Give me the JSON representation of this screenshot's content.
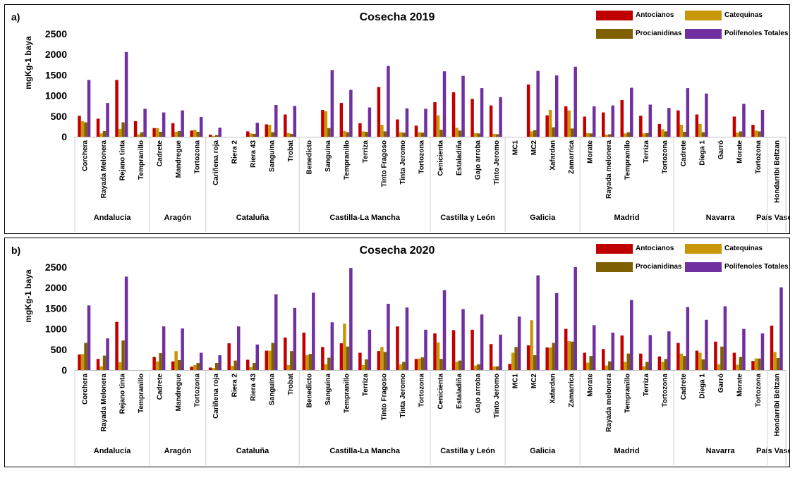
{
  "series_colors": [
    "#C00000",
    "#C9960A",
    "#7F6000",
    "#7030A0"
  ],
  "legend": [
    "Antocianos",
    "Catequinas",
    "Procianidinas",
    "Polifenoles Totales"
  ],
  "chart_data": [
    {
      "type": "bar",
      "panel": "a)",
      "title": "Cosecha 2019",
      "ylabel": "mgKg-1 baya",
      "ylim": [
        0,
        2500
      ],
      "yticks": [
        0,
        500,
        1000,
        1500,
        2000,
        2500
      ],
      "grid": false,
      "legend_position": "top-right",
      "categories": [
        "Corchera",
        "Rayada Melonera",
        "Rejano tinta",
        "Tempranillo",
        "Cadrete",
        "Mandregue",
        "Tortozona",
        "Cariñena roja",
        "Riera 2",
        "Riera 43",
        "Sanguina",
        "Trobat",
        "Benedicto",
        "Sanguina",
        "Tempranillo",
        "Terriza",
        "Tinto Fragoso",
        "Tinta Jeromo",
        "Tortozona",
        "Cenicienta",
        "Estaladiña",
        "Gajo arroba",
        "Tinto Jeromo",
        "MC1",
        "MC2",
        "Xafardan",
        "Zamarrica",
        "Morate",
        "Rayada melonera",
        "Tempranillo",
        "Terriza",
        "Tortozona",
        "Cadrete",
        "Diega 1",
        "Garró",
        "Morate",
        "Tortozona",
        "Hondarribi Beltzan"
      ],
      "groups": [
        {
          "name": "Andalucía",
          "count": 4
        },
        {
          "name": "Aragón",
          "count": 3
        },
        {
          "name": "Cataluña",
          "count": 5
        },
        {
          "name": "Castilla-La Mancha",
          "count": 7
        },
        {
          "name": "Castilla y León",
          "count": 4
        },
        {
          "name": "Galicia",
          "count": 4
        },
        {
          "name": "Madrid",
          "count": 5
        },
        {
          "name": "Navarra",
          "count": 5
        },
        {
          "name": "País Vasco",
          "count": 1
        }
      ],
      "series": [
        {
          "name": "Antocianos",
          "values": [
            510,
            440,
            1380,
            380,
            210,
            330,
            150,
            50,
            0,
            130,
            300,
            540,
            0,
            650,
            820,
            330,
            1210,
            420,
            270,
            840,
            1080,
            920,
            760,
            0,
            1270,
            520,
            740,
            490,
            590,
            890,
            510,
            310,
            640,
            540,
            0,
            490,
            290,
            0
          ]
        },
        {
          "name": "Catequinas",
          "values": [
            380,
            80,
            190,
            60,
            210,
            120,
            170,
            20,
            0,
            80,
            290,
            90,
            0,
            620,
            140,
            130,
            290,
            110,
            110,
            520,
            220,
            90,
            70,
            0,
            130,
            650,
            640,
            90,
            50,
            80,
            80,
            180,
            290,
            310,
            0,
            100,
            150,
            0
          ]
        },
        {
          "name": "Procianidinas",
          "values": [
            350,
            140,
            350,
            110,
            120,
            140,
            120,
            40,
            0,
            70,
            110,
            70,
            0,
            210,
            110,
            120,
            130,
            100,
            100,
            170,
            150,
            80,
            60,
            0,
            160,
            230,
            200,
            80,
            60,
            110,
            90,
            130,
            120,
            110,
            0,
            130,
            130,
            0
          ]
        },
        {
          "name": "Polifenoles Totales",
          "values": [
            1380,
            820,
            2060,
            680,
            590,
            640,
            480,
            220,
            0,
            340,
            770,
            750,
            0,
            1620,
            1140,
            710,
            1720,
            690,
            680,
            1590,
            1480,
            1180,
            960,
            0,
            1600,
            1490,
            1700,
            740,
            760,
            1190,
            780,
            700,
            1180,
            1050,
            0,
            800,
            650,
            0
          ]
        }
      ]
    },
    {
      "type": "bar",
      "panel": "b)",
      "title": "Cosecha 2020",
      "ylabel": "mgKg-1 baya",
      "ylim": [
        0,
        2500
      ],
      "yticks": [
        0,
        500,
        1000,
        1500,
        2000,
        2500
      ],
      "grid": false,
      "legend_position": "top-right",
      "categories": [
        "Corchera",
        "Rayada Melonera",
        "Rejano tinta",
        "Tempranillo",
        "Cadrete",
        "Mandregue",
        "Tortozona",
        "Cariñena roja",
        "Riera 2",
        "Riera 43",
        "Sanguina",
        "Trobat",
        "Benedicto",
        "Sanguina",
        "Tempranillo",
        "Terriza",
        "Tinto Fragoso",
        "Tinta Jeromo",
        "Tortozona",
        "Cenicienta",
        "Estaladiña",
        "Gajo arroba",
        "Tinto Jeromo",
        "MC1",
        "MC2",
        "Xafardan",
        "Zamarrica",
        "Morate",
        "Rayada melonera",
        "Tempranillo",
        "Terriza",
        "Tortozona",
        "Cadrete",
        "Diega 1",
        "Garró",
        "Morate",
        "Tortozona",
        "Hondarribi Beltzan"
      ],
      "groups": [
        {
          "name": "Andalucía",
          "count": 4
        },
        {
          "name": "Aragón",
          "count": 3
        },
        {
          "name": "Cataluña",
          "count": 5
        },
        {
          "name": "Castilla-La Mancha",
          "count": 7
        },
        {
          "name": "Castilla y León",
          "count": 4
        },
        {
          "name": "Galicia",
          "count": 4
        },
        {
          "name": "Madrid",
          "count": 5
        },
        {
          "name": "Navarra",
          "count": 5
        },
        {
          "name": "País Vasco",
          "count": 1
        }
      ],
      "series": [
        {
          "name": "Antocianos",
          "values": [
            380,
            270,
            1170,
            0,
            320,
            210,
            80,
            60,
            650,
            250,
            470,
            790,
            910,
            560,
            650,
            420,
            460,
            1060,
            270,
            890,
            970,
            980,
            630,
            150,
            600,
            550,
            1000,
            420,
            510,
            840,
            400,
            330,
            660,
            470,
            690,
            420,
            220,
            1080
          ]
        },
        {
          "name": "Catequinas",
          "values": [
            390,
            90,
            190,
            0,
            210,
            460,
            120,
            50,
            100,
            70,
            470,
            120,
            360,
            140,
            1130,
            120,
            560,
            140,
            280,
            670,
            200,
            110,
            90,
            420,
            1210,
            550,
            700,
            180,
            110,
            200,
            90,
            200,
            400,
            420,
            140,
            130,
            280,
            440
          ]
        },
        {
          "name": "Procianidinas",
          "values": [
            660,
            350,
            720,
            0,
            410,
            240,
            170,
            170,
            230,
            170,
            660,
            460,
            390,
            300,
            570,
            260,
            440,
            200,
            310,
            270,
            230,
            140,
            90,
            560,
            360,
            660,
            690,
            340,
            210,
            400,
            200,
            270,
            340,
            260,
            570,
            320,
            280,
            290
          ]
        },
        {
          "name": "Polifenoles Totales",
          "values": [
            1570,
            770,
            2270,
            0,
            1060,
            1010,
            420,
            360,
            1060,
            620,
            1840,
            1510,
            1880,
            1160,
            2480,
            980,
            1610,
            1520,
            980,
            1940,
            1480,
            1350,
            860,
            1300,
            2300,
            1870,
            2500,
            1090,
            910,
            1700,
            850,
            940,
            1530,
            1220,
            1550,
            1000,
            890,
            2010
          ]
        }
      ]
    }
  ]
}
